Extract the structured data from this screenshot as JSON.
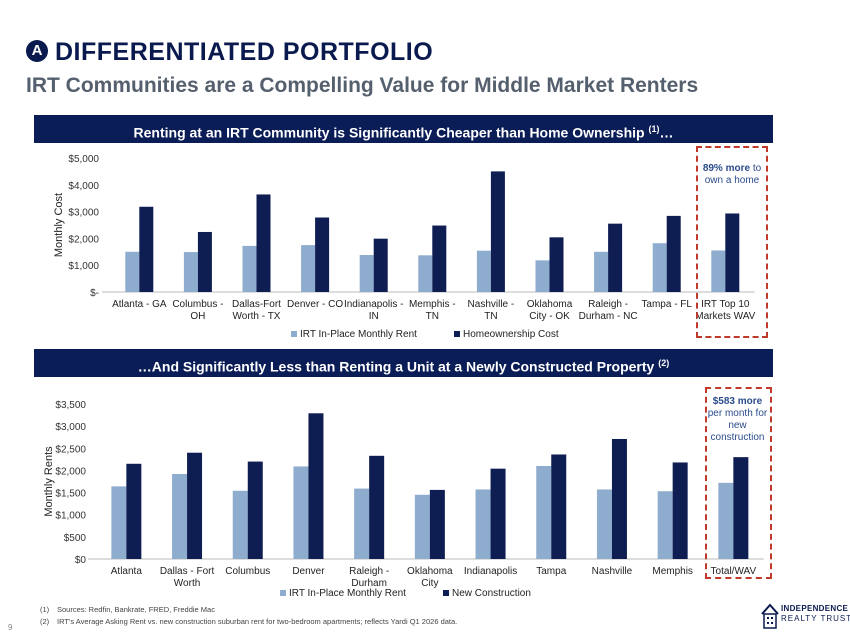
{
  "header": {
    "badge": "A",
    "title": "DIFFERENTIATED PORTFOLIO",
    "subtitle": "IRT Communities are a Compelling Value for Middle Market Renters"
  },
  "section1": {
    "banner": "Renting at an IRT Community is Significantly Cheaper than Home Ownership",
    "banner_sup": "(1)",
    "banner_suffix": "…",
    "callout_bold": "89% more",
    "callout_rest": "to own a home"
  },
  "section2": {
    "banner_prefix": "…",
    "banner": "And Significantly Less than Renting a Unit at a Newly Constructed Property",
    "banner_sup": "(2)",
    "callout_bold": "$583 more",
    "callout_rest": "per month for new construction"
  },
  "colors": {
    "series1": "#8eaccd",
    "series2": "#0e1d52",
    "banner": "#0b1d56",
    "callout": "#c0392b"
  },
  "chart_data": [
    {
      "type": "bar",
      "ylabel": "Monthly Cost",
      "ylim": [
        0,
        5000
      ],
      "yticks": [
        0,
        1000,
        2000,
        3000,
        4000,
        5000
      ],
      "ytick_labels": [
        "$-",
        "$1,000",
        "$2,000",
        "$3,000",
        "$4,000",
        "$5,000"
      ],
      "categories": [
        "Atlanta - GA",
        "Columbus - OH",
        "Dallas-Fort Worth - TX",
        "Denver - CO",
        "Indianapolis - IN",
        "Memphis - TN",
        "Nashville - TN",
        "Oklahoma City - OK",
        "Raleigh - Durham - NC",
        "Tampa - FL",
        "IRT Top 10 Markets WAV"
      ],
      "category_lines": [
        [
          "Atlanta - GA"
        ],
        [
          "Columbus -",
          "OH"
        ],
        [
          "Dallas-Fort",
          "Worth - TX"
        ],
        [
          "Denver - CO"
        ],
        [
          "Indianapolis -",
          "IN"
        ],
        [
          "Memphis -",
          "TN"
        ],
        [
          "Nashville -",
          "TN"
        ],
        [
          "Oklahoma",
          "City - OK"
        ],
        [
          "Raleigh -",
          "Durham - NC"
        ],
        [
          "Tampa - FL"
        ],
        [
          "IRT Top 10",
          "Markets WAV"
        ]
      ],
      "series": [
        {
          "name": "IRT In-Place Monthly Rent",
          "values": [
            1500,
            1490,
            1720,
            1750,
            1380,
            1370,
            1540,
            1180,
            1500,
            1820,
            1550
          ]
        },
        {
          "name": "Homeownership Cost",
          "values": [
            3180,
            2240,
            3640,
            2780,
            1990,
            2480,
            4500,
            2040,
            2550,
            2840,
            2930
          ]
        }
      ],
      "legend": "bottom"
    },
    {
      "type": "bar",
      "ylabel": "Monthly Rents",
      "ylim": [
        0,
        3500
      ],
      "yticks": [
        0,
        500,
        1000,
        1500,
        2000,
        2500,
        3000,
        3500
      ],
      "ytick_labels": [
        "$0",
        "$500",
        "$1,000",
        "$1,500",
        "$2,000",
        "$2,500",
        "$3,000",
        "$3,500"
      ],
      "categories": [
        "Atlanta",
        "Dallas - Fort Worth",
        "Columbus",
        "Denver",
        "Raleigh - Durham",
        "Oklahoma City",
        "Indianapolis",
        "Tampa",
        "Nashville",
        "Memphis",
        "Total/WAV"
      ],
      "category_lines": [
        [
          "Atlanta"
        ],
        [
          "Dallas - Fort",
          "Worth"
        ],
        [
          "Columbus"
        ],
        [
          "Denver"
        ],
        [
          "Raleigh -",
          "Durham"
        ],
        [
          "Oklahoma",
          "City"
        ],
        [
          "Indianapolis"
        ],
        [
          "Tampa"
        ],
        [
          "Nashville"
        ],
        [
          "Memphis"
        ],
        [
          "Total/WAV"
        ]
      ],
      "series": [
        {
          "name": "IRT In-Place Monthly Rent",
          "values": [
            1640,
            1920,
            1540,
            2090,
            1590,
            1450,
            1570,
            2100,
            1570,
            1530,
            1720
          ]
        },
        {
          "name": "New Construction",
          "values": [
            2150,
            2400,
            2200,
            3290,
            2330,
            1560,
            2040,
            2360,
            2710,
            2180,
            2300
          ]
        }
      ],
      "legend": "bottom"
    }
  ],
  "footnotes": [
    {
      "num": "(1)",
      "text": "Sources: Redfin, Bankrate, FRED, Freddie Mac"
    },
    {
      "num": "(2)",
      "text": "IRT's Average Asking Rent vs. new construction suburban rent for two-bedroom apartments; reflects Yardi Q1 2026 data."
    }
  ],
  "page_number": "9",
  "logo": {
    "line1": "INDEPENDENCE",
    "line2": "REALTY TRUST"
  }
}
